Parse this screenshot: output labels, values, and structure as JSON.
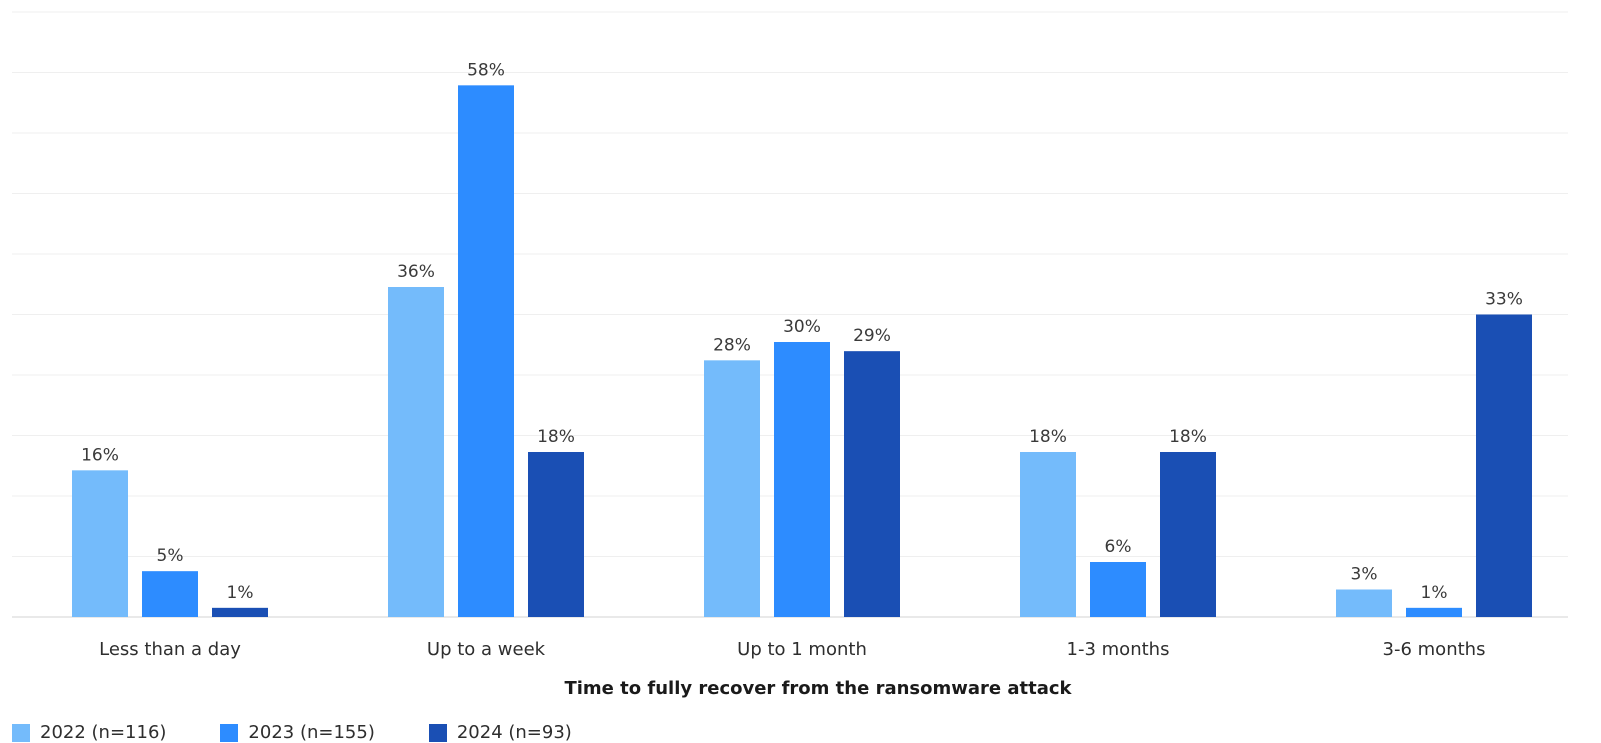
{
  "chart_data": {
    "type": "bar",
    "title": "",
    "xlabel": "Time to fully recover from the ransomware attack",
    "ylabel": "",
    "ylim": [
      0,
      66
    ],
    "grid": true,
    "legend_position": "bottom-left",
    "categories": [
      "Less than a day",
      "Up to a week",
      "Up to 1 month",
      "1-3 months",
      "3-6 months"
    ],
    "series": [
      {
        "name": "2022 (n=116)",
        "color": "#74bbfb",
        "values": [
          16,
          36,
          28,
          18,
          3
        ],
        "labels": [
          "16%",
          "36%",
          "28%",
          "18%",
          "3%"
        ]
      },
      {
        "name": "2023 (n=155)",
        "color": "#2d8cff",
        "values": [
          5,
          58,
          30,
          6,
          1
        ],
        "labels": [
          "5%",
          "58%",
          "30%",
          "6%",
          "1%"
        ]
      },
      {
        "name": "2024 (n=93)",
        "color": "#1a4fb4",
        "values": [
          1,
          18,
          29,
          18,
          33
        ],
        "labels": [
          "1%",
          "18%",
          "29%",
          "18%",
          "33%"
        ]
      }
    ]
  }
}
